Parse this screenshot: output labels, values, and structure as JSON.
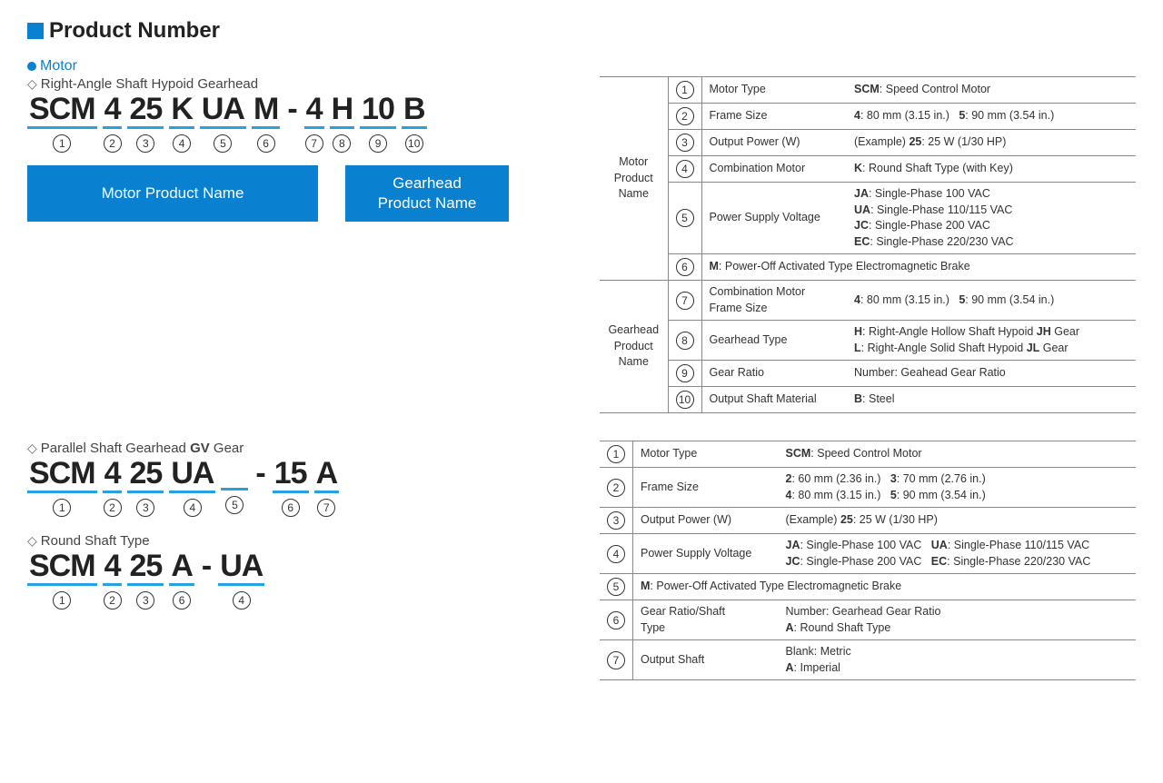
{
  "heading": "Product Number",
  "colors": {
    "accent": "#0a80d0",
    "underline": "#27a1e0",
    "text": "#333333",
    "border": "#888888"
  },
  "motor_label": "Motor",
  "sec1": {
    "title": "Right-Angle Shaft Hypoid Gearhead",
    "segs": [
      "SCM",
      "4",
      "25",
      "K",
      "UA",
      "M",
      "-",
      "4",
      "H",
      "10",
      "B"
    ],
    "nums": [
      "①",
      "②",
      "③",
      "④",
      "⑤",
      "⑥",
      "",
      "⑦",
      "⑧",
      "⑨",
      "⑩"
    ],
    "btn1": "Motor Product Name",
    "btn2": "Gearhead\nProduct Name"
  },
  "table1": {
    "groups": [
      {
        "name": "Motor\nProduct\nName",
        "rows": [
          {
            "n": "①",
            "label": "Motor Type",
            "val": "<b>SCM</b>: Speed Control Motor"
          },
          {
            "n": "②",
            "label": "Frame Size",
            "val": "<b>4</b>: 80 mm (3.15 in.)&nbsp;&nbsp;&nbsp;<b>5</b>: 90 mm (3.54 in.)"
          },
          {
            "n": "③",
            "label": "Output Power (W)",
            "val": "(Example) <b>25</b>: 25 W (1/30 HP)"
          },
          {
            "n": "④",
            "label": "Combination Motor",
            "val": "<b>K</b>: Round Shaft Type (with Key)"
          },
          {
            "n": "⑤",
            "label": "Power Supply Voltage",
            "val": "<b>JA</b>: Single-Phase 100 VAC<br><b>UA</b>: Single-Phase 110/115 VAC<br><b>JC</b>: Single-Phase 200 VAC<br><b>EC</b>: Single-Phase 220/230 VAC"
          },
          {
            "n": "⑥",
            "label": "",
            "val": "<b>M</b>: Power-Off Activated Type Electromagnetic Brake",
            "span": true
          }
        ]
      },
      {
        "name": "Gearhead\nProduct\nName",
        "rows": [
          {
            "n": "⑦",
            "label": "Combination Motor\nFrame Size",
            "val": "<b>4</b>: 80 mm (3.15 in.)&nbsp;&nbsp;&nbsp;<b>5</b>: 90 mm (3.54 in.)"
          },
          {
            "n": "⑧",
            "label": "Gearhead Type",
            "val": "<b>H</b>: Right-Angle Hollow Shaft Hypoid <b>JH</b> Gear<br><b>L</b>: Right-Angle Solid Shaft Hypoid <b>JL</b> Gear"
          },
          {
            "n": "⑨",
            "label": "Gear Ratio",
            "val": "Number: Geahead Gear Ratio"
          },
          {
            "n": "⑩",
            "label": "Output Shaft Material",
            "val": "<b>B</b>: Steel"
          }
        ]
      }
    ]
  },
  "sec2": {
    "title": "Parallel Shaft Gearhead GV Gear",
    "segs": [
      "SCM",
      "4",
      "25",
      "UA",
      "",
      "-",
      "15",
      "A"
    ],
    "nums": [
      "①",
      "②",
      "③",
      "④",
      "⑤",
      "",
      "⑥",
      "⑦"
    ]
  },
  "sec3": {
    "title": "Round Shaft Type",
    "segs": [
      "SCM",
      "4",
      "25",
      "A",
      "-",
      "UA"
    ],
    "nums": [
      "①",
      "②",
      "③",
      "⑥",
      "",
      "④"
    ]
  },
  "table2": {
    "rows": [
      {
        "n": "①",
        "label": "Motor Type",
        "val": "<b>SCM</b>: Speed Control Motor"
      },
      {
        "n": "②",
        "label": "Frame Size",
        "val": "<b>2</b>: 60 mm (2.36 in.)&nbsp;&nbsp;&nbsp;<b>3</b>: 70 mm (2.76 in.)<br><b>4</b>: 80 mm (3.15 in.)&nbsp;&nbsp;&nbsp;<b>5</b>: 90 mm (3.54 in.)"
      },
      {
        "n": "③",
        "label": "Output Power (W)",
        "val": "(Example) <b>25</b>: 25 W (1/30 HP)"
      },
      {
        "n": "④",
        "label": "Power Supply Voltage",
        "val": "<b>JA</b>: Single-Phase 100 VAC&nbsp;&nbsp;&nbsp;<b>UA</b>: Single-Phase 110/115 VAC<br><b>JC</b>: Single-Phase 200 VAC&nbsp;&nbsp;&nbsp;<b>EC</b>: Single-Phase 220/230 VAC"
      },
      {
        "n": "⑤",
        "label": "",
        "val": "<b>M</b>: Power-Off Activated Type Electromagnetic Brake",
        "span": true
      },
      {
        "n": "⑥",
        "label": "Gear Ratio/Shaft\nType",
        "val": "Number: Gearhead Gear Ratio<br><b>A</b>: Round Shaft Type"
      },
      {
        "n": "⑦",
        "label": "Output Shaft",
        "val": "Blank: Metric<br><b>A</b>: Imperial"
      }
    ]
  }
}
